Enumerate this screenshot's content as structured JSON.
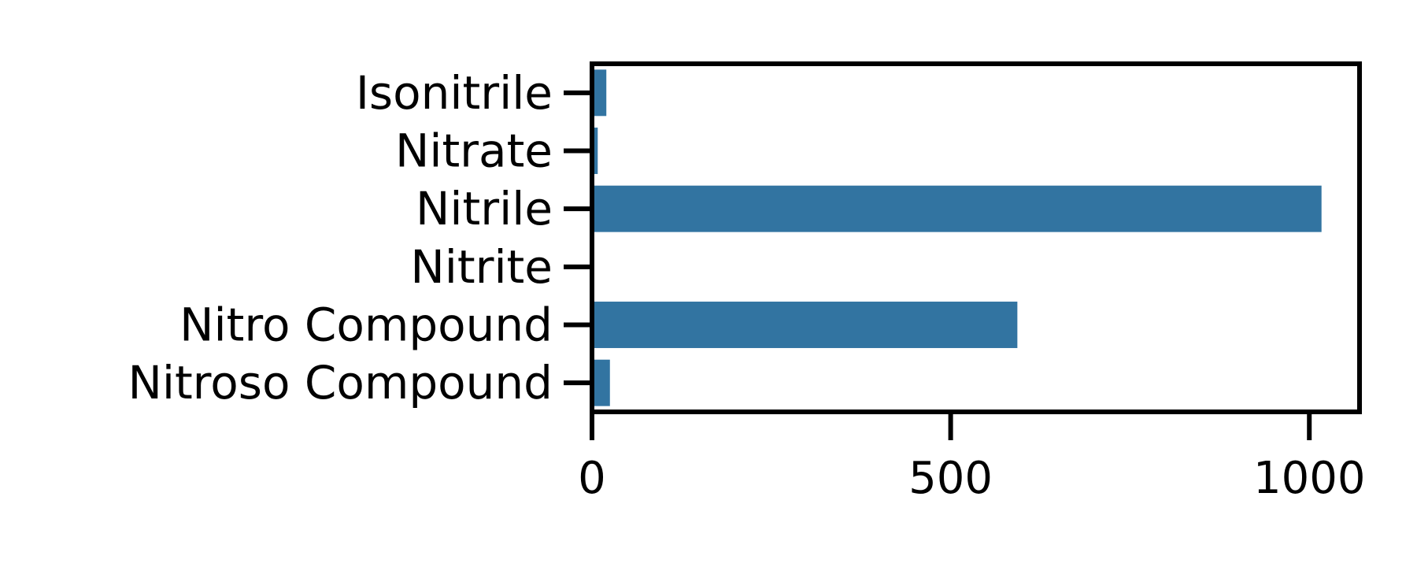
{
  "chart_data": {
    "type": "bar",
    "orientation": "horizontal",
    "categories": [
      "Isonitrile",
      "Nitrate",
      "Nitrile",
      "Nitrite",
      "Nitro Compound",
      "Nitroso Compound"
    ],
    "values": [
      20,
      8,
      1017,
      1,
      593,
      25
    ],
    "xlim": [
      0,
      1070
    ],
    "xticks": [
      0,
      500,
      1000
    ],
    "title": "",
    "xlabel": "",
    "ylabel": "",
    "grid": false,
    "colors": {
      "bar": "#3274a1",
      "axis": "#000000"
    }
  }
}
